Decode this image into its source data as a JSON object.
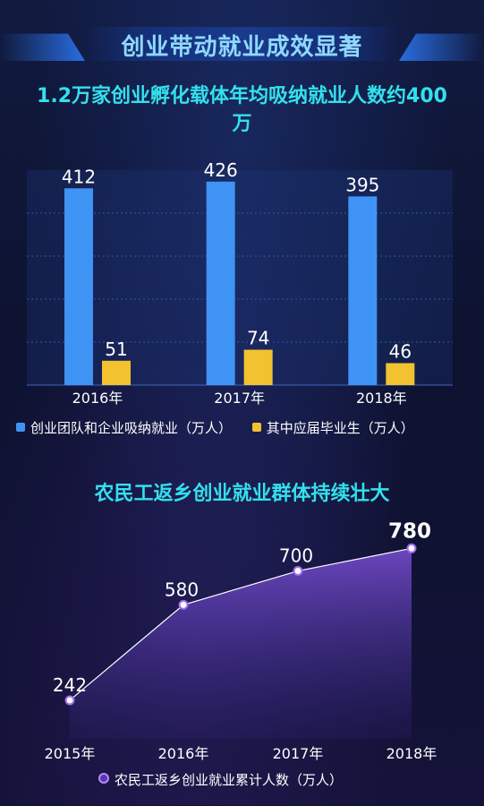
{
  "page": {
    "banner_title": "创业带动就业成效显著",
    "section1_title": "1.2万家创业孵化载体年均吸纳就业人数约400万",
    "section2_title": "农民工返乡创业就业群体持续壮大"
  },
  "chart_data": [
    {
      "type": "bar",
      "categories": [
        "2016年",
        "2017年",
        "2018年"
      ],
      "series": [
        {
          "name": "创业团队和企业吸纳就业（万人）",
          "values": [
            412,
            426,
            395
          ],
          "color": "#3f93f5"
        },
        {
          "name": "其中应届毕业生（万人）",
          "values": [
            51,
            74,
            46
          ],
          "color": "#f2c230"
        }
      ],
      "ylim": [
        0,
        450
      ],
      "grid": true,
      "legend": "bottom"
    },
    {
      "type": "area",
      "x": [
        "2015年",
        "2016年",
        "2017年",
        "2018年"
      ],
      "series": [
        {
          "name": "农民工返乡创业就业累计人数（万人）",
          "values": [
            242,
            580,
            700,
            780
          ],
          "color": "#8a5cf0"
        }
      ],
      "ylim": [
        0,
        800
      ],
      "grid": false,
      "legend": "bottom"
    }
  ]
}
